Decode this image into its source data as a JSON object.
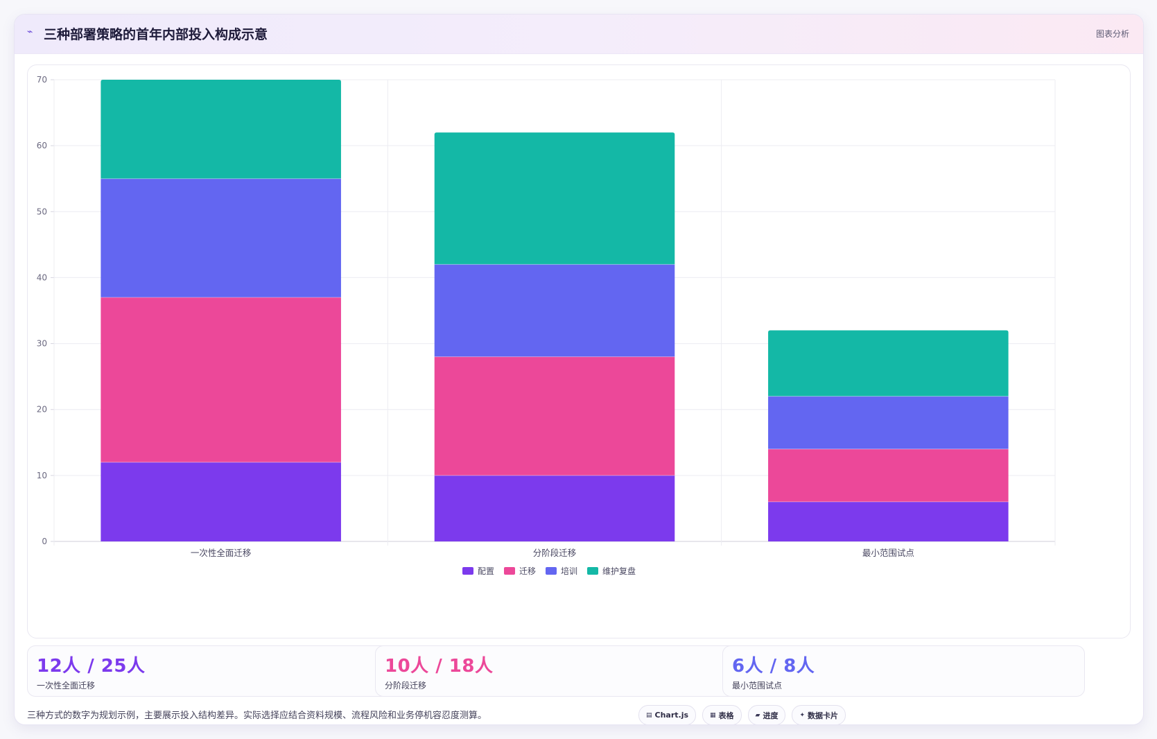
{
  "header": {
    "icon": "sparkline-icon",
    "title": "三种部署策略的首年内部投入构成示意",
    "action_label": "图表分析"
  },
  "chart_data": {
    "type": "bar",
    "stacked": true,
    "categories": [
      "一次性全面迁移",
      "分阶段迁移",
      "最小范围试点"
    ],
    "series": [
      {
        "name": "配置",
        "color": "#7c3aed",
        "values": [
          12,
          10,
          6
        ]
      },
      {
        "name": "迁移",
        "color": "#ec4899",
        "values": [
          25,
          18,
          8
        ]
      },
      {
        "name": "培训",
        "color": "#6366f1",
        "values": [
          18,
          14,
          8
        ]
      },
      {
        "name": "维护复盘",
        "color": "#14b8a6",
        "values": [
          15,
          20,
          10
        ]
      }
    ],
    "ylim": [
      0,
      70
    ],
    "yticks": [
      "0",
      "10",
      "20",
      "30",
      "40",
      "50",
      "60",
      "70"
    ],
    "grid": true,
    "legend_position": "bottom"
  },
  "stats": [
    {
      "value": "12人 / 25人",
      "label": "一次性全面迁移",
      "color": "#7c3aed"
    },
    {
      "value": "10人 / 18人",
      "label": "分阶段迁移",
      "color": "#ec4899"
    },
    {
      "value": "6人 / 8人",
      "label": "最小范围试点",
      "color": "#6366f1"
    }
  ],
  "footer": {
    "note": "三种方式的数字为规划示例，主要展示投入结构差异。实际选择应结合资料规模、流程风险和业务停机容忍度测算。",
    "chips": [
      {
        "icon": "chart-icon",
        "glyph": "▤",
        "label": "Chart.js"
      },
      {
        "icon": "table-icon",
        "glyph": "▦",
        "label": "表格"
      },
      {
        "icon": "progress-icon",
        "glyph": "▰",
        "label": "进度"
      },
      {
        "icon": "sparkle-icon",
        "glyph": "✦",
        "label": "数据卡片"
      }
    ]
  }
}
